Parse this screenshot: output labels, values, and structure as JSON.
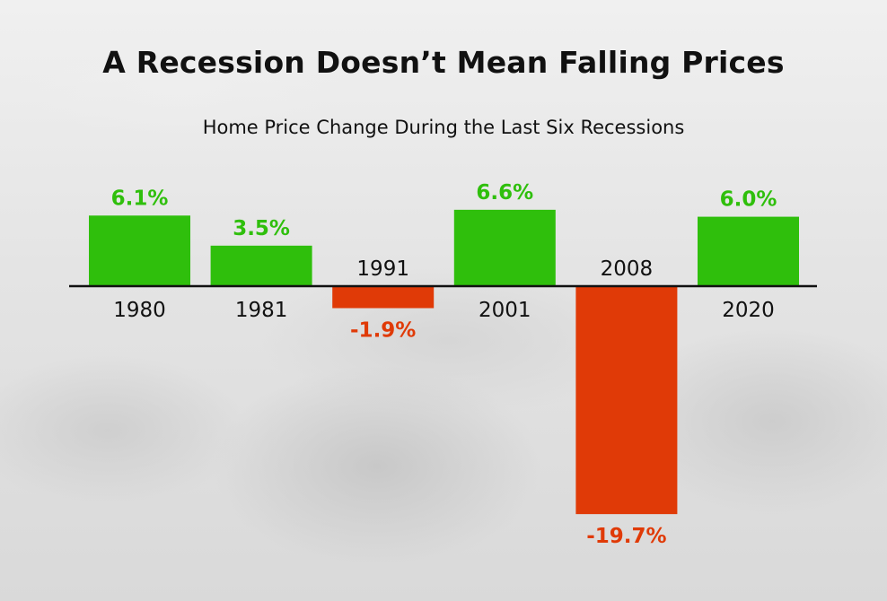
{
  "title": "A Recession Doesn’t Mean Falling Prices",
  "subtitle": "Home Price Change During the Last Six Recessions",
  "colors": {
    "positive": "#2fbf0c",
    "negative": "#e03a07",
    "axis": "#111111",
    "year_text": "#111111"
  },
  "chart_data": {
    "type": "bar",
    "title": "A Recession Doesn’t Mean Falling Prices",
    "subtitle": "Home Price Change During the Last Six Recessions",
    "categories": [
      "1980",
      "1981",
      "1991",
      "2001",
      "2008",
      "2020"
    ],
    "values": [
      6.1,
      3.5,
      -1.9,
      6.6,
      -19.7,
      6.0
    ],
    "data_labels": [
      "6.1%",
      "3.5%",
      "-1.9%",
      "6.6%",
      "-19.7%",
      "6.0%"
    ],
    "xlabel": "",
    "ylabel": "",
    "ylim": [
      -19.7,
      6.6
    ],
    "grid": false,
    "legend": "none"
  }
}
